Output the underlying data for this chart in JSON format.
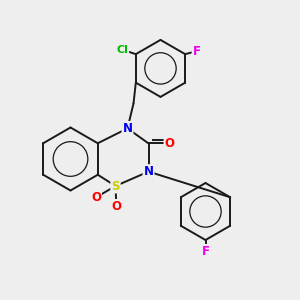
{
  "bg_color": "#eeeeee",
  "bond_color": "#1a1a1a",
  "bond_width": 1.4,
  "atom_colors": {
    "N": "#0000ee",
    "S": "#cccc00",
    "O": "#ff0000",
    "Cl": "#00bb00",
    "F": "#ee00ee",
    "C": "#1a1a1a"
  },
  "font_size": 8.5,
  "fig_size": [
    3.0,
    3.0
  ],
  "dpi": 100
}
